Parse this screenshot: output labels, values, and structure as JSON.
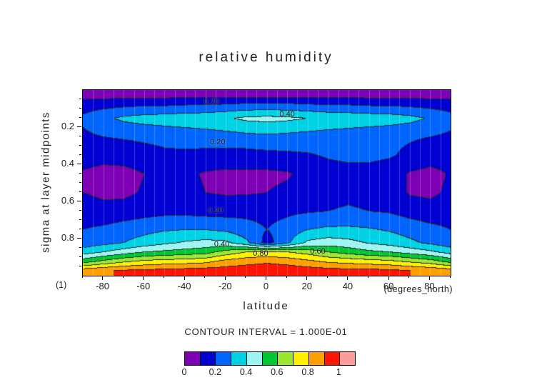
{
  "title": "relative humidity",
  "axes": {
    "x_label": "latitude",
    "x_unit_label": "(degrees_north)",
    "y_label": "sigma at layer midpoints",
    "corner_label": "(1)",
    "x_ticks": [
      -80,
      -60,
      -40,
      -20,
      0,
      20,
      40,
      60,
      80
    ],
    "y_ticks": [
      0.2,
      0.4,
      0.6,
      0.8
    ]
  },
  "colorbar": {
    "caption": "CONTOUR INTERVAL = 1.000E-01",
    "tick_labels": [
      "0",
      "0.2",
      "0.4",
      "0.6",
      "0.8",
      "1"
    ]
  },
  "contour_labels": [
    {
      "text": "0.20",
      "lat": -27,
      "sigma": 0.065
    },
    {
      "text": "0.40",
      "lat": 10,
      "sigma": 0.13
    },
    {
      "text": "0.20",
      "lat": -24,
      "sigma": 0.28
    },
    {
      "text": "0.20",
      "lat": -25,
      "sigma": 0.65
    },
    {
      "text": "0.40",
      "lat": -22,
      "sigma": 0.83
    },
    {
      "text": "0.80",
      "lat": -3,
      "sigma": 0.88
    },
    {
      "text": "0.60",
      "lat": 25,
      "sigma": 0.87
    }
  ],
  "chart_data": {
    "type": "heatmap",
    "title": "relative humidity",
    "xlabel": "latitude (degrees_north)",
    "ylabel": "sigma at layer midpoints",
    "contour_interval": 0.1,
    "levels": [
      0,
      0.1,
      0.2,
      0.3,
      0.4,
      0.5,
      0.6,
      0.7,
      0.8,
      0.9,
      1.0
    ],
    "colors": [
      "#7d00b4",
      "#0000d2",
      "#0064ff",
      "#00d2e6",
      "#9cf5f0",
      "#00c832",
      "#9be62e",
      "#fff000",
      "#ffa000",
      "#ff1400",
      "#ff9b9b"
    ],
    "xlim": [
      -90,
      90
    ],
    "ylim": [
      0,
      1
    ],
    "y_inverted": true,
    "grid": "faint vertical graticule every 5 degrees",
    "legend_position": "bottom",
    "x": [
      -90,
      -80,
      -70,
      -60,
      -50,
      -40,
      -30,
      -20,
      -10,
      0,
      10,
      20,
      30,
      40,
      50,
      60,
      70,
      80,
      90
    ],
    "y": [
      0.02,
      0.07,
      0.15,
      0.25,
      0.35,
      0.45,
      0.55,
      0.65,
      0.75,
      0.82,
      0.87,
      0.92,
      0.97
    ],
    "values": [
      [
        0.05,
        0.05,
        0.05,
        0.05,
        0.05,
        0.05,
        0.05,
        0.05,
        0.05,
        0.05,
        0.05,
        0.05,
        0.05,
        0.05,
        0.05,
        0.05,
        0.05,
        0.05,
        0.05
      ],
      [
        0.14,
        0.15,
        0.16,
        0.17,
        0.17,
        0.18,
        0.18,
        0.19,
        0.2,
        0.2,
        0.2,
        0.19,
        0.18,
        0.18,
        0.17,
        0.17,
        0.16,
        0.15,
        0.14
      ],
      [
        0.22,
        0.28,
        0.32,
        0.34,
        0.35,
        0.36,
        0.37,
        0.39,
        0.42,
        0.43,
        0.42,
        0.4,
        0.38,
        0.37,
        0.36,
        0.35,
        0.33,
        0.29,
        0.24
      ],
      [
        0.18,
        0.2,
        0.21,
        0.22,
        0.23,
        0.24,
        0.25,
        0.26,
        0.27,
        0.28,
        0.27,
        0.26,
        0.25,
        0.24,
        0.23,
        0.22,
        0.21,
        0.2,
        0.18
      ],
      [
        0.14,
        0.13,
        0.14,
        0.16,
        0.18,
        0.18,
        0.17,
        0.16,
        0.16,
        0.17,
        0.18,
        0.19,
        0.21,
        0.22,
        0.22,
        0.21,
        0.18,
        0.15,
        0.14
      ],
      [
        0.09,
        0.07,
        0.07,
        0.1,
        0.13,
        0.12,
        0.09,
        0.08,
        0.08,
        0.08,
        0.09,
        0.13,
        0.16,
        0.17,
        0.17,
        0.15,
        0.09,
        0.07,
        0.11
      ],
      [
        0.1,
        0.08,
        0.08,
        0.11,
        0.14,
        0.13,
        0.1,
        0.09,
        0.09,
        0.1,
        0.12,
        0.15,
        0.17,
        0.18,
        0.17,
        0.15,
        0.09,
        0.08,
        0.12
      ],
      [
        0.15,
        0.13,
        0.14,
        0.16,
        0.17,
        0.17,
        0.16,
        0.16,
        0.17,
        0.17,
        0.18,
        0.19,
        0.2,
        0.21,
        0.2,
        0.19,
        0.16,
        0.14,
        0.15
      ],
      [
        0.2,
        0.22,
        0.25,
        0.27,
        0.29,
        0.3,
        0.3,
        0.28,
        0.24,
        0.2,
        0.24,
        0.3,
        0.32,
        0.32,
        0.31,
        0.29,
        0.26,
        0.23,
        0.2
      ],
      [
        0.24,
        0.27,
        0.3,
        0.34,
        0.38,
        0.41,
        0.43,
        0.42,
        0.32,
        0.16,
        0.28,
        0.42,
        0.45,
        0.43,
        0.39,
        0.36,
        0.32,
        0.28,
        0.24
      ],
      [
        0.35,
        0.4,
        0.45,
        0.5,
        0.52,
        0.54,
        0.56,
        0.64,
        0.7,
        0.72,
        0.7,
        0.66,
        0.6,
        0.56,
        0.52,
        0.5,
        0.46,
        0.42,
        0.36
      ],
      [
        0.55,
        0.62,
        0.68,
        0.72,
        0.74,
        0.75,
        0.77,
        0.83,
        0.86,
        0.88,
        0.86,
        0.82,
        0.78,
        0.76,
        0.74,
        0.72,
        0.68,
        0.64,
        0.56
      ],
      [
        0.86,
        0.89,
        0.91,
        0.92,
        0.93,
        0.94,
        0.95,
        0.95,
        0.96,
        0.97,
        0.96,
        0.95,
        0.94,
        0.93,
        0.93,
        0.92,
        0.9,
        0.88,
        0.85
      ]
    ]
  }
}
